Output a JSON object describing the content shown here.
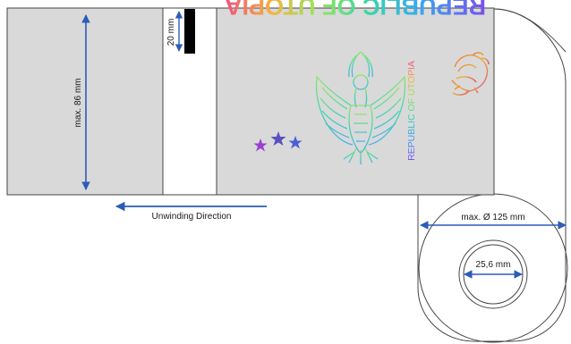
{
  "labels": {
    "height_dimension": "max. 86 mm",
    "gap_dimension": "20 mm",
    "roll_diameter": "max. Ø 125 mm",
    "core_diameter": "25,6 mm",
    "unwinding_direction": "Unwinding Direction"
  },
  "label_artwork": {
    "title": "REPUBLIC OF UTOPIA",
    "side_text": "REPUBLIC OF UTOPIA",
    "emblem": "eagle-emblem",
    "stars": [
      "star",
      "star",
      "star"
    ],
    "lion": "lion-emblem"
  },
  "colors": {
    "label_background": "#d9d9d9",
    "outline": "#444444",
    "dimension_arrow": "#2b5cb8",
    "gap_marker": "#000000"
  }
}
